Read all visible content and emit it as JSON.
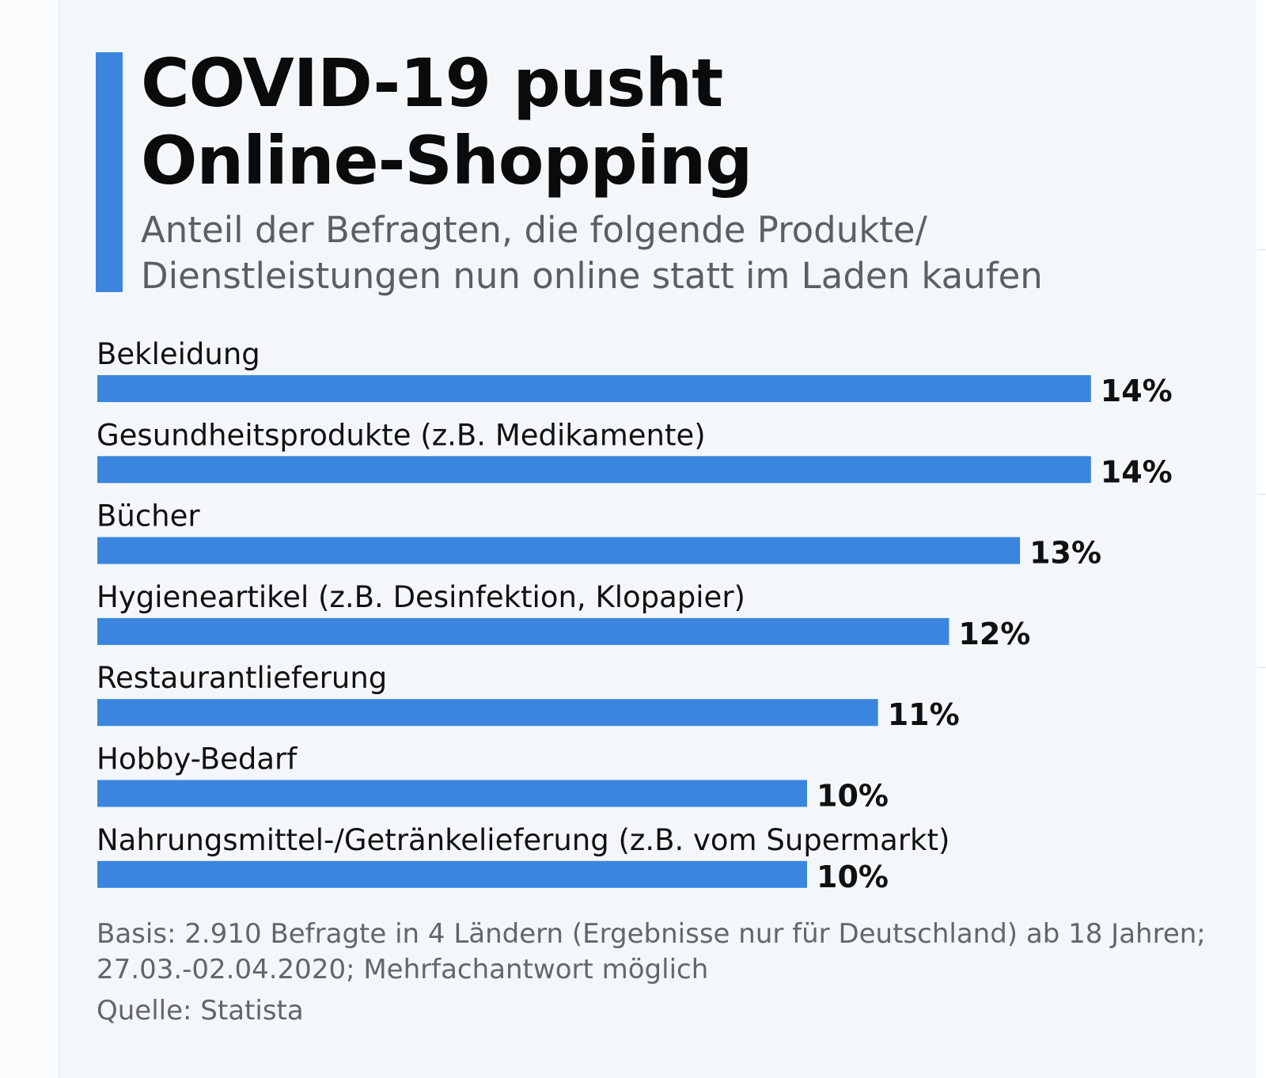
{
  "header": {
    "title_lines": [
      "COVID-19 pusht",
      "Online-Shopping"
    ],
    "subtitle_lines": [
      "Anteil der Befragten, die folgende Produkte/",
      "Dienstleistungen nun online statt im Laden kaufen"
    ]
  },
  "footer": {
    "note_lines": [
      "Basis: 2.910 Befragte in 4 Ländern (Ergebnisse nur für Deutschland) ab 18 Jahren;",
      "27.03.-02.04.2020; Mehrfachantwort möglich"
    ],
    "source": "Quelle: Statista"
  },
  "colors": {
    "bar": "#3a86df",
    "accent": "#3a86df",
    "background": "#f4f7fa"
  },
  "chart_data": {
    "type": "bar",
    "orientation": "horizontal",
    "title": "COVID-19 pusht Online-Shopping",
    "subtitle": "Anteil der Befragten, die folgende Produkte/Dienstleistungen nun online statt im Laden kaufen",
    "categories": [
      "Bekleidung",
      "Gesundheitsprodukte (z.B. Medikamente)",
      "Bücher",
      "Hygieneartikel (z.B. Desinfektion, Klopapier)",
      "Restaurantlieferung",
      "Hobby-Bedarf",
      "Nahrungsmittel-/Getränkelieferung (z.B. vom Supermarkt)"
    ],
    "values": [
      14,
      14,
      13,
      12,
      11,
      10,
      10
    ],
    "value_labels": [
      "14%",
      "14%",
      "13%",
      "12%",
      "11%",
      "10%",
      "10%"
    ],
    "unit": "%",
    "grid": false,
    "legend": "none"
  }
}
